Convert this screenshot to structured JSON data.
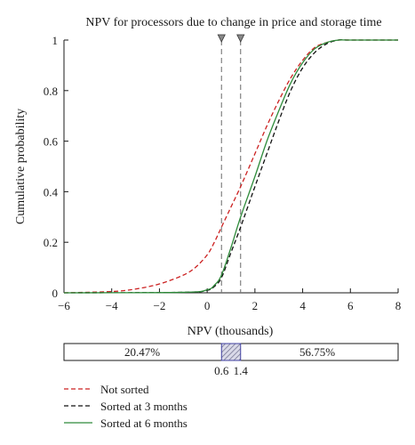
{
  "chart_data": {
    "type": "line",
    "title": "NPV for processors due to change in price and storage time",
    "xlabel": "NPV (thousands)",
    "ylabel": "Cumulative probability",
    "xlim": [
      -6,
      8
    ],
    "ylim": [
      0,
      1
    ],
    "xticks": [
      "−6",
      "−4",
      "−2",
      "0",
      "2",
      "4",
      "6",
      "8"
    ],
    "yticks": [
      "0",
      "0.2",
      "0.4",
      "0.6",
      "0.8",
      "1"
    ],
    "grid": false,
    "legend_position": "bottom-left",
    "series": [
      {
        "name": "Not sorted",
        "color": "#cc2222",
        "dash": "dashed",
        "x": [
          -6,
          -4,
          -3,
          -2,
          -1,
          -0.5,
          0,
          0.3,
          0.6,
          1.0,
          1.4,
          2.0,
          2.5,
          3.0,
          3.5,
          4.0,
          4.5,
          5.0,
          5.5,
          6,
          8
        ],
        "y": [
          0,
          0.005,
          0.015,
          0.035,
          0.07,
          0.1,
          0.15,
          0.2,
          0.26,
          0.34,
          0.42,
          0.55,
          0.66,
          0.76,
          0.85,
          0.92,
          0.97,
          0.99,
          1.0,
          1.0,
          1.0
        ]
      },
      {
        "name": "Sorted at 3 months",
        "color": "#111111",
        "dash": "dashed",
        "x": [
          -6,
          -1,
          0,
          0.3,
          0.6,
          1.0,
          1.4,
          2.0,
          2.5,
          3.0,
          3.5,
          4.0,
          4.5,
          5.0,
          5.5,
          6,
          8
        ],
        "y": [
          0,
          0.002,
          0.01,
          0.025,
          0.06,
          0.16,
          0.26,
          0.42,
          0.55,
          0.68,
          0.8,
          0.89,
          0.95,
          0.985,
          1.0,
          1.0,
          1.0
        ]
      },
      {
        "name": "Sorted at 6 months",
        "color": "#2e8b3a",
        "dash": "solid",
        "x": [
          -6,
          -1,
          0,
          0.3,
          0.6,
          1.0,
          1.4,
          2.0,
          2.5,
          3.0,
          3.5,
          4.0,
          4.5,
          5.0,
          5.5,
          6,
          8
        ],
        "y": [
          0,
          0.002,
          0.012,
          0.03,
          0.07,
          0.18,
          0.3,
          0.46,
          0.6,
          0.72,
          0.83,
          0.91,
          0.965,
          0.99,
          1.0,
          1.0,
          1.0
        ]
      }
    ],
    "markers": [
      {
        "x": 0.6,
        "label": "0.6"
      },
      {
        "x": 1.4,
        "label": "1.4"
      }
    ],
    "bar": {
      "left_label": "20.47%",
      "right_label": "56.75%"
    }
  }
}
